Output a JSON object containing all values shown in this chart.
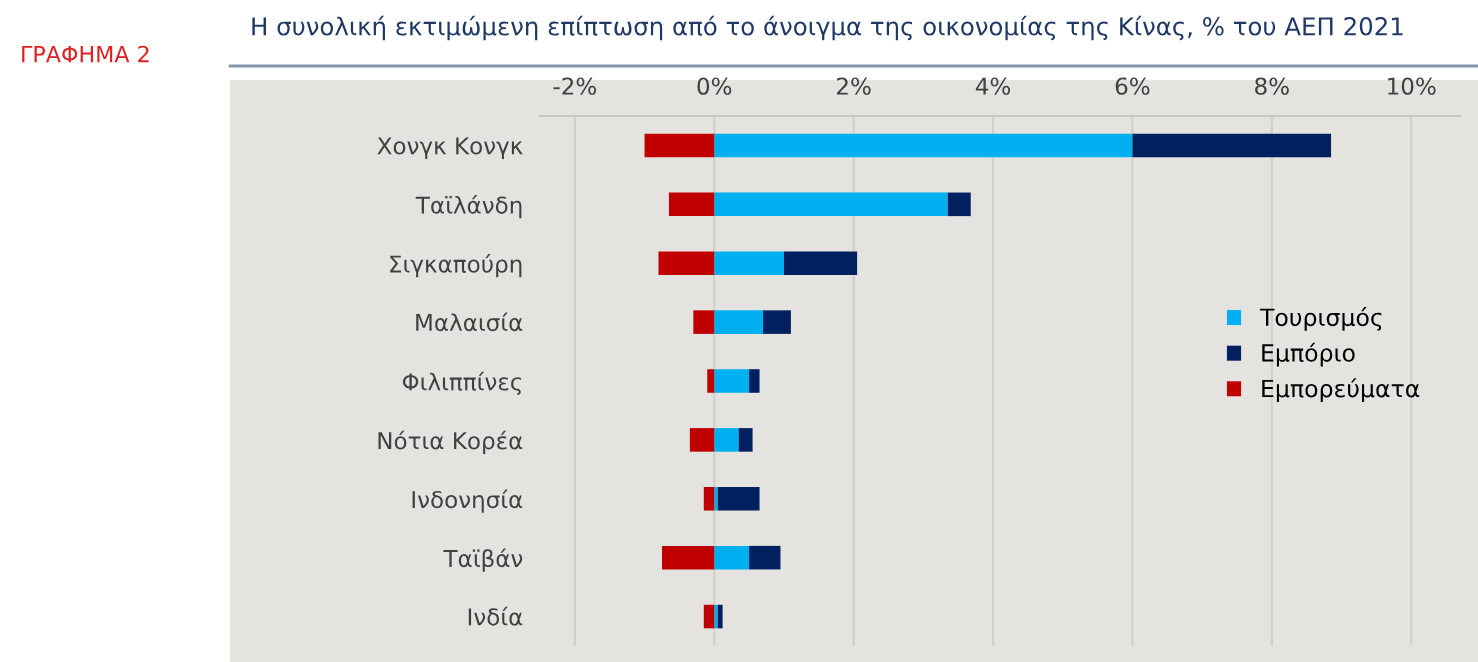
{
  "chart_data": {
    "type": "bar",
    "orientation": "horizontal",
    "stacked": true,
    "title": "Η συνολική εκτιμώμενη επίπτωση από το άνοιγμα της οικονομίας της Κίνας, % του ΑΕΠ 2021",
    "annotations": [
      "ΓΡΑΦΗΜΑ 2"
    ],
    "categories": [
      "Χονγκ Κονγκ",
      "Ταϊλάνδη",
      "Σιγκαπούρη",
      "Μαλαισία",
      "Φιλιππίνες",
      "Νότια Κορέα",
      "Ινδονησία",
      "Ταϊβάν",
      "Ινδία"
    ],
    "series": [
      {
        "name": "Τουρισμός",
        "color": "#00b0f0",
        "values": [
          6.0,
          3.35,
          1.0,
          0.7,
          0.5,
          0.35,
          0.05,
          0.5,
          0.05
        ]
      },
      {
        "name": "Εμπόριο",
        "color": "#002060",
        "values": [
          2.85,
          0.33,
          1.05,
          0.4,
          0.15,
          0.2,
          0.6,
          0.45,
          0.07
        ]
      },
      {
        "name": "Εμπορεύματα",
        "color": "#c00000",
        "values": [
          -1.0,
          -0.65,
          -0.8,
          -0.3,
          -0.1,
          -0.35,
          -0.15,
          -0.75,
          -0.15
        ]
      }
    ],
    "xlim": [
      -2.5,
      10.7
    ],
    "xticks": [
      {
        "value": -2,
        "label": "-2%"
      },
      {
        "value": 0,
        "label": "0%"
      },
      {
        "value": 2,
        "label": "2%"
      },
      {
        "value": 4,
        "label": "4%"
      },
      {
        "value": 6,
        "label": "6%"
      },
      {
        "value": 8,
        "label": "8%"
      },
      {
        "value": 10,
        "label": "10%"
      }
    ],
    "grid": "x",
    "legend": "center right"
  }
}
